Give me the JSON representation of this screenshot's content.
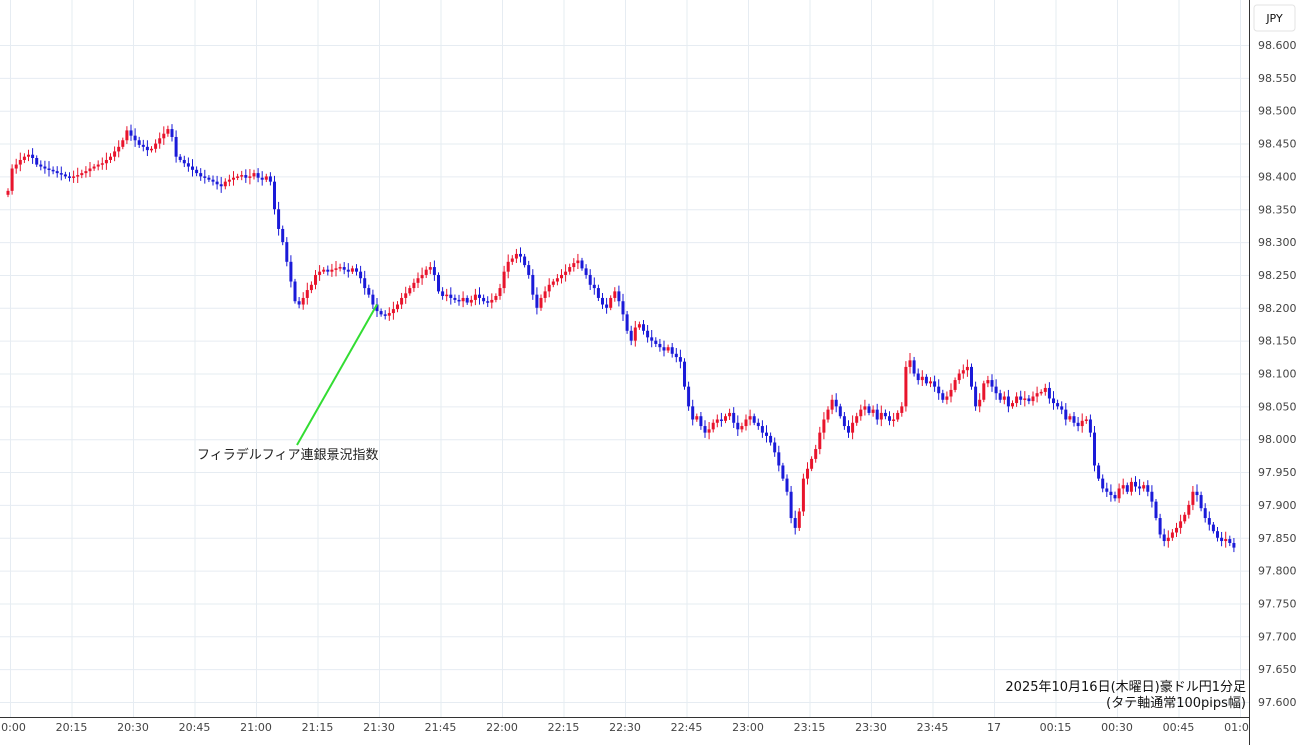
{
  "currency_badge": "JPY",
  "caption": {
    "line1": "2025年10月16日(木曜日)豪ドル円1分足",
    "line2": "(タテ軸通常100pips幅)"
  },
  "colors": {
    "up": "#e8142c",
    "down": "#1a1ad8",
    "grid": "#e6ecf2",
    "annotation_line": "#33dd33"
  },
  "chart_data": {
    "type": "candlestick",
    "title": "",
    "interval_minutes": 1,
    "start_time": "20:00",
    "first_open": 98.372,
    "ylim": [
      97.6,
      98.6
    ],
    "y_ticks": [
      "98.600",
      "98.550",
      "98.500",
      "98.450",
      "98.400",
      "98.350",
      "98.300",
      "98.250",
      "98.200",
      "98.150",
      "98.100",
      "98.050",
      "98.000",
      "97.950",
      "97.900",
      "97.850",
      "97.800",
      "97.750",
      "97.700",
      "97.650",
      "97.600"
    ],
    "x_ticks": [
      "20:00",
      "20:15",
      "20:30",
      "20:45",
      "21:00",
      "21:15",
      "21:30",
      "21:45",
      "22:00",
      "22:15",
      "22:30",
      "22:45",
      "23:00",
      "23:15",
      "23:30",
      "23:45",
      "17",
      "00:15",
      "00:30",
      "00:45",
      "01:00"
    ],
    "up_color": "red",
    "down_color": "blue",
    "grid": true,
    "closes": [
      98.378,
      98.412,
      98.418,
      98.425,
      98.43,
      98.433,
      98.428,
      98.418,
      98.415,
      98.412,
      98.41,
      98.408,
      98.405,
      98.403,
      98.4,
      98.398,
      98.4,
      98.402,
      98.405,
      98.408,
      98.412,
      98.415,
      98.418,
      98.42,
      98.425,
      98.43,
      98.438,
      98.445,
      98.455,
      98.47,
      98.462,
      98.455,
      98.448,
      98.445,
      98.44,
      98.442,
      98.45,
      98.458,
      98.465,
      98.472,
      98.46,
      98.43,
      98.425,
      98.42,
      98.415,
      98.41,
      98.405,
      98.4,
      98.398,
      98.395,
      98.392,
      98.388,
      98.385,
      98.392,
      98.395,
      98.398,
      98.4,
      98.402,
      98.398,
      98.4,
      98.405,
      98.398,
      98.395,
      98.4,
      98.392,
      98.35,
      98.32,
      98.3,
      98.27,
      98.24,
      98.21,
      98.205,
      98.215,
      98.227,
      98.235,
      98.25,
      98.255,
      98.258,
      98.255,
      98.258,
      98.26,
      98.262,
      98.258,
      98.255,
      98.26,
      98.255,
      98.245,
      98.23,
      98.22,
      98.205,
      98.195,
      98.19,
      98.188,
      98.192,
      98.198,
      98.205,
      98.215,
      98.222,
      98.23,
      98.238,
      98.245,
      98.25,
      98.258,
      98.262,
      98.25,
      98.225,
      98.218,
      98.22,
      98.215,
      98.212,
      98.21,
      98.215,
      98.208,
      98.212,
      98.22,
      98.215,
      98.21,
      98.208,
      98.212,
      98.218,
      98.23,
      98.255,
      98.27,
      98.275,
      98.282,
      98.278,
      98.265,
      98.25,
      98.22,
      98.2,
      98.215,
      98.225,
      98.235,
      98.24,
      98.245,
      98.25,
      98.255,
      98.262,
      98.268,
      98.272,
      98.26,
      98.25,
      98.235,
      98.23,
      98.215,
      98.205,
      98.2,
      98.215,
      98.225,
      98.21,
      98.19,
      98.165,
      98.15,
      98.17,
      98.175,
      98.165,
      98.155,
      98.15,
      98.145,
      98.14,
      98.135,
      98.14,
      98.13,
      98.125,
      98.118,
      98.08,
      98.05,
      98.03,
      98.035,
      98.02,
      98.01,
      98.015,
      98.025,
      98.03,
      98.028,
      98.035,
      98.04,
      98.025,
      98.015,
      98.02,
      98.03,
      98.035,
      98.025,
      98.02,
      98.01,
      98.005,
      97.995,
      97.98,
      97.96,
      97.94,
      97.92,
      97.88,
      97.865,
      97.89,
      97.94,
      97.955,
      97.97,
      97.985,
      98.01,
      98.03,
      98.045,
      98.06,
      98.05,
      98.035,
      98.02,
      98.01,
      98.025,
      98.035,
      98.045,
      98.05,
      98.04,
      98.045,
      98.03,
      98.04,
      98.035,
      98.028,
      98.03,
      98.04,
      98.05,
      98.11,
      98.12,
      98.1,
      98.09,
      98.095,
      98.085,
      98.088,
      98.08,
      98.07,
      98.06,
      98.065,
      98.075,
      98.09,
      98.1,
      98.105,
      98.11,
      98.08,
      98.05,
      98.06,
      98.085,
      98.09,
      98.08,
      98.07,
      98.06,
      98.065,
      98.05,
      98.055,
      98.065,
      98.06,
      98.062,
      98.058,
      98.065,
      98.07,
      98.072,
      98.078,
      98.062,
      98.055,
      98.05,
      98.045,
      98.03,
      98.035,
      98.025,
      98.02,
      98.028,
      98.03,
      98.01,
      97.96,
      97.94,
      97.925,
      97.92,
      97.915,
      97.91,
      97.925,
      97.93,
      97.92,
      97.935,
      97.928,
      97.925,
      97.93,
      97.92,
      97.905,
      97.88,
      97.855,
      97.845,
      97.85,
      97.858,
      97.865,
      97.875,
      97.885,
      97.9,
      97.92,
      97.915,
      97.895,
      97.88,
      97.87,
      97.86,
      97.85,
      97.845,
      97.848,
      97.842,
      97.835
    ],
    "annotations": [
      {
        "text": "フィラデルフィア連銀景況指数",
        "time": "21:30",
        "price": 98.205
      }
    ]
  }
}
